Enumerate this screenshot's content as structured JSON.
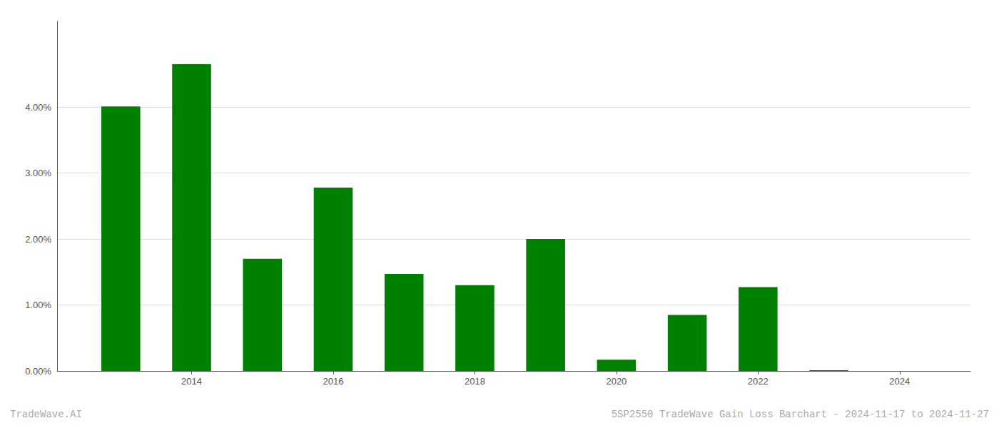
{
  "chart_data": {
    "type": "bar",
    "x": [
      2013,
      2014,
      2015,
      2016,
      2017,
      2018,
      2019,
      2020,
      2021,
      2022,
      2023
    ],
    "values": [
      0.0401,
      0.0465,
      0.017,
      0.0278,
      0.0147,
      0.013,
      0.02,
      0.0017,
      0.0085,
      0.0127,
      0.0001
    ],
    "color": "#008000",
    "xlim": [
      2012.1,
      2025.0
    ],
    "xticks": [
      2014,
      2016,
      2018,
      2020,
      2022,
      2024
    ],
    "ylim": [
      0,
      0.053
    ],
    "yticks": [
      {
        "value": 0.0,
        "label": "0.00%"
      },
      {
        "value": 0.01,
        "label": "1.00%"
      },
      {
        "value": 0.02,
        "label": "2.00%"
      },
      {
        "value": 0.03,
        "label": "3.00%"
      },
      {
        "value": 0.04,
        "label": "4.00%"
      }
    ],
    "grid": true,
    "annotations": [
      "TradeWave.AI",
      "5SP2550 TradeWave Gain Loss Barchart - 2024-11-17 to 2024-11-27"
    ]
  }
}
